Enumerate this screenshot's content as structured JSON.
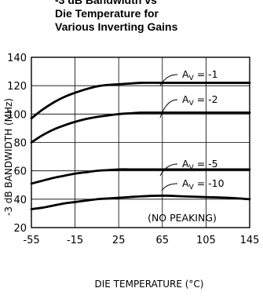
{
  "chart_data": {
    "type": "line",
    "title": "-3 dB Bandwidth vs Die Temperature for Various Inverting Gains",
    "title_lines": [
      "-3 dB Bandwidth vs",
      "Die Temperature for",
      "Various Inverting Gains"
    ],
    "xlabel": "DIE TEMPERATURE (°C)",
    "ylabel": "-3 dB BANDWIDTH (MHz)",
    "xlim": [
      -55,
      145
    ],
    "ylim": [
      20,
      140
    ],
    "xticks": [
      "-55",
      "-15",
      "25",
      "65",
      "105",
      "145"
    ],
    "yticks": [
      "20",
      "40",
      "60",
      "80",
      "100",
      "120",
      "140"
    ],
    "grid": true,
    "series": [
      {
        "name": "AV = -1",
        "x": [
          -55,
          -45,
          -35,
          -25,
          -15,
          -5,
          5,
          15,
          25,
          35,
          45,
          65,
          85,
          105,
          125,
          145
        ],
        "y": [
          97,
          103,
          108,
          112,
          115,
          117.5,
          119.5,
          120.5,
          121,
          121.5,
          122,
          122,
          122,
          122,
          122,
          122
        ]
      },
      {
        "name": "AV = -2",
        "x": [
          -55,
          -45,
          -35,
          -25,
          -15,
          -5,
          5,
          15,
          25,
          35,
          45,
          65,
          85,
          105,
          125,
          145
        ],
        "y": [
          80,
          85,
          89,
          92,
          94.5,
          96.5,
          98,
          99,
          100,
          100.5,
          101,
          101,
          101,
          101,
          101,
          101
        ]
      },
      {
        "name": "AV = -5",
        "x": [
          -55,
          -45,
          -35,
          -25,
          -15,
          -5,
          5,
          15,
          25,
          35,
          45,
          65,
          85,
          105,
          125,
          145
        ],
        "y": [
          51,
          53,
          55,
          56.5,
          58,
          59,
          60,
          60.5,
          61,
          61,
          61,
          61,
          61,
          61,
          61,
          61
        ]
      },
      {
        "name": "AV = -10",
        "x": [
          -55,
          -45,
          -35,
          -25,
          -15,
          -5,
          5,
          15,
          25,
          35,
          45,
          65,
          85,
          105,
          125,
          145
        ],
        "y": [
          33,
          34,
          35.5,
          37,
          38,
          39,
          40,
          40.5,
          41,
          41.5,
          42,
          42.5,
          42,
          41.5,
          41,
          40
        ]
      }
    ],
    "annotations": {
      "av_symbol": "A",
      "av_subscript": "V",
      "gain_labels": [
        "= -1",
        "= -2",
        "= -5",
        "= -10"
      ],
      "note": "(NO PEAKING)"
    }
  }
}
